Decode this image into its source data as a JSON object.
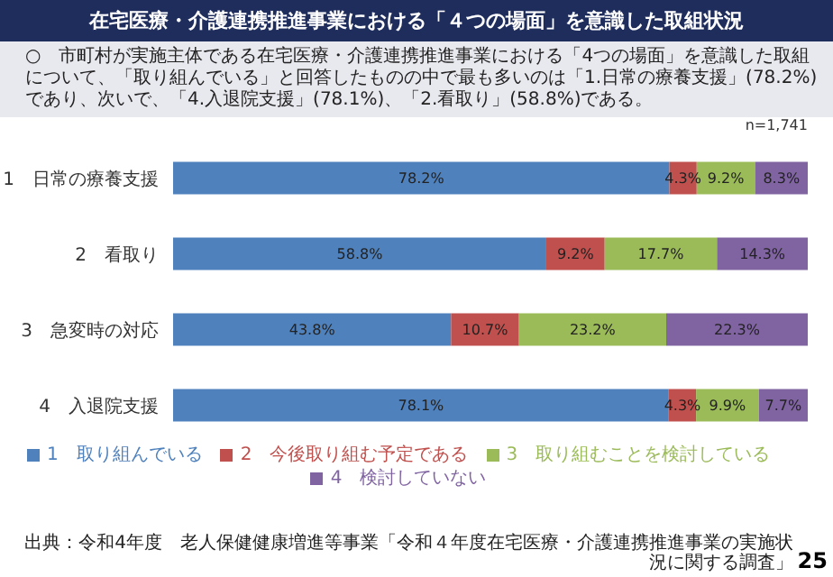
{
  "chart_data": {
    "type": "bar",
    "orientation": "horizontal",
    "stacked": true,
    "title": "在宅医療・介護連携推進事業における「４つの場面」を意識した取組状況",
    "subtitle": "○　市町村が実施主体である在宅医療・介護連携推進事業における「4つの場面」を意識した取組について、「取り組んでいる」と回答したものの中で最も多いのは「1.日常の療養支援」(78.2%)であり、次いで、「4.入退院支援」(78.1%)、「2.看取り」(58.8%)である。",
    "annotations": [
      "n=1,741",
      "出典：令和4年度　老人保健健康増進等事業「令和４年度在宅医療・介護連携推進事業の実施状況に関する調査」",
      "25"
    ],
    "categories": [
      "1　日常の療養支援",
      "2　看取り",
      "3　急変時の対応",
      "4　入退院支援"
    ],
    "series": [
      {
        "name": "1　取り組んでいる",
        "color": "#4f81bd",
        "values": [
          78.2,
          58.8,
          43.8,
          78.1
        ],
        "value_labels": [
          "78.2%",
          "58.8%",
          "43.8%",
          "78.1%"
        ]
      },
      {
        "name": "2　今後取り組む予定である",
        "color": "#c0504d",
        "values": [
          4.3,
          9.2,
          10.7,
          4.3
        ],
        "value_labels": [
          "4.3%",
          "9.2%",
          "10.7%",
          "4.3%"
        ]
      },
      {
        "name": "3　取り組むことを検討している",
        "color": "#9bbb59",
        "values": [
          9.2,
          17.7,
          23.2,
          9.9
        ],
        "value_labels": [
          "9.2%",
          "17.7%",
          "23.2%",
          "9.9%"
        ]
      },
      {
        "name": "4　検討していない",
        "color": "#8064a2",
        "values": [
          8.3,
          14.3,
          22.3,
          7.7
        ],
        "value_labels": [
          "8.3%",
          "14.3%",
          "22.3%",
          "7.7%"
        ]
      }
    ],
    "legend": "bottom"
  }
}
